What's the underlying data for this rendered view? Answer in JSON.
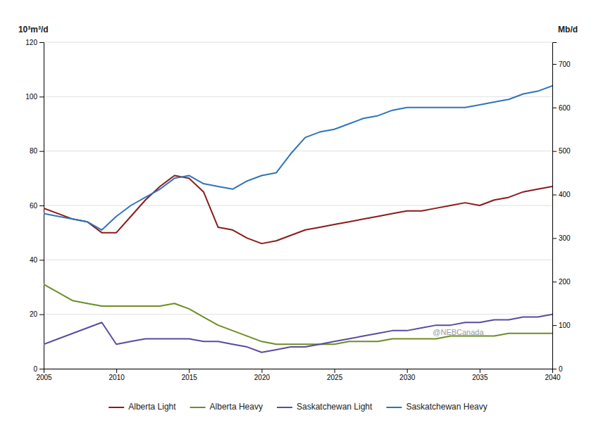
{
  "chart_data": {
    "type": "line",
    "y_label": "10³m³/d",
    "y2_label": "Mb/d",
    "annotations": [
      "@NEBCanada"
    ],
    "x": [
      2005,
      2006,
      2007,
      2008,
      2009,
      2010,
      2011,
      2012,
      2013,
      2014,
      2015,
      2016,
      2017,
      2018,
      2019,
      2020,
      2021,
      2022,
      2023,
      2024,
      2025,
      2026,
      2027,
      2028,
      2029,
      2030,
      2031,
      2032,
      2033,
      2034,
      2035,
      2036,
      2037,
      2038,
      2039,
      2040
    ],
    "xlim": [
      2005,
      2040
    ],
    "xticks": [
      2005,
      2010,
      2015,
      2020,
      2025,
      2030,
      2035,
      2040
    ],
    "ylim": [
      0,
      120
    ],
    "yticks": [
      0,
      20,
      40,
      60,
      80,
      100,
      120
    ],
    "y2lim": [
      0,
      750
    ],
    "y2ticks": [
      0,
      100,
      200,
      300,
      400,
      500,
      600,
      700
    ],
    "grid": true,
    "legend": "bottom",
    "series": [
      {
        "name": "Alberta Light",
        "color": "#8B1A1A",
        "values": [
          59,
          57,
          55,
          54,
          50,
          50,
          56,
          62,
          67,
          71,
          70,
          65,
          52,
          51,
          48,
          46,
          47,
          49,
          51,
          52,
          53,
          54,
          55,
          56,
          57,
          58,
          58,
          59,
          60,
          61,
          60,
          62,
          63,
          65,
          66,
          67
        ]
      },
      {
        "name": "Alberta Heavy",
        "color": "#6B8E23",
        "values": [
          31,
          28,
          25,
          24,
          23,
          23,
          23,
          23,
          23,
          24,
          22,
          19,
          16,
          14,
          12,
          10,
          9,
          9,
          9,
          9,
          9,
          10,
          10,
          10,
          11,
          11,
          11,
          11,
          12,
          12,
          12,
          12,
          13,
          13,
          13,
          13
        ]
      },
      {
        "name": "Saskatchewan Light",
        "color": "#5B4A9E",
        "values": [
          9,
          11,
          13,
          15,
          17,
          9,
          10,
          11,
          11,
          11,
          11,
          10,
          10,
          9,
          8,
          6,
          7,
          8,
          8,
          9,
          10,
          11,
          12,
          13,
          14,
          14,
          15,
          16,
          16,
          17,
          17,
          18,
          18,
          19,
          19,
          20
        ]
      },
      {
        "name": "Saskatchewan Heavy",
        "color": "#2E75B6",
        "values": [
          57,
          56,
          55,
          54,
          51,
          56,
          60,
          63,
          66,
          70,
          71,
          68,
          67,
          66,
          69,
          71,
          72,
          79,
          85,
          87,
          88,
          90,
          92,
          93,
          95,
          96,
          96,
          96,
          96,
          96,
          97,
          98,
          99,
          101,
          102,
          104
        ]
      }
    ]
  }
}
